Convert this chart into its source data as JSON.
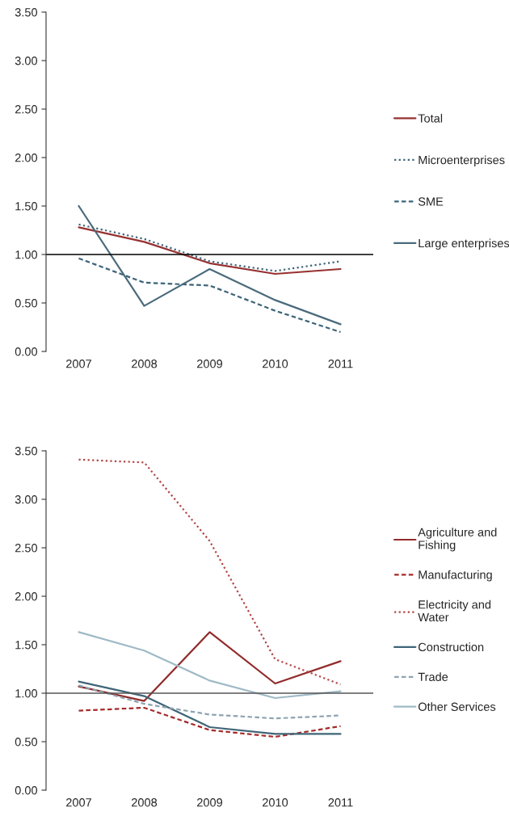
{
  "chart_data": [
    {
      "type": "line",
      "categories": [
        "2007",
        "2008",
        "2009",
        "2010",
        "2011"
      ],
      "ylim": [
        0,
        3.5
      ],
      "yticks": [
        {
          "value": 0,
          "label": "0.00"
        },
        {
          "value": 0.5,
          "label": "0.50"
        },
        {
          "value": 1,
          "label": "1.00"
        },
        {
          "value": 1.5,
          "label": "1.50"
        },
        {
          "value": 2,
          "label": "2.00"
        },
        {
          "value": 2.5,
          "label": "2.50"
        },
        {
          "value": 3,
          "label": "3.00"
        },
        {
          "value": 3.5,
          "label": "3.50"
        }
      ],
      "grid": false,
      "legend": "right",
      "ref_lines": [
        {
          "axis": "y",
          "value": 1,
          "color": "#000000"
        }
      ],
      "series": [
        {
          "name": "Total",
          "color": "#973131",
          "line_style": "solid",
          "values": [
            1.28,
            1.13,
            0.91,
            0.8,
            0.85
          ]
        },
        {
          "name": "Microenterprises",
          "color": "#3d6478",
          "line_style": "dotted",
          "values": [
            1.31,
            1.16,
            0.93,
            0.83,
            0.93
          ]
        },
        {
          "name": "SME",
          "color": "#3d6478",
          "line_style": "dashed",
          "values": [
            0.96,
            0.71,
            0.68,
            0.42,
            0.2
          ]
        },
        {
          "name": "Large enterprises",
          "color": "#4a6b7c",
          "line_style": "solid",
          "values": [
            1.5,
            0.47,
            0.85,
            0.53,
            0.28
          ]
        }
      ]
    },
    {
      "type": "line",
      "categories": [
        "2007",
        "2008",
        "2009",
        "2010",
        "2011"
      ],
      "ylim": [
        0,
        3.5
      ],
      "yticks": [
        {
          "value": 0,
          "label": "0.00"
        },
        {
          "value": 0.5,
          "label": "0.50"
        },
        {
          "value": 1,
          "label": "1.00"
        },
        {
          "value": 1.5,
          "label": "1.50"
        },
        {
          "value": 2,
          "label": "2.00"
        },
        {
          "value": 2.5,
          "label": "2.50"
        },
        {
          "value": 3,
          "label": "3.00"
        },
        {
          "value": 3.5,
          "label": "3.50"
        }
      ],
      "grid": false,
      "legend": "right",
      "ref_lines": [
        {
          "axis": "y",
          "value": 1,
          "color": "#555555"
        }
      ],
      "series": [
        {
          "name": "Agriculture and\nFishing",
          "color": "#922b2b",
          "line_style": "solid",
          "values": [
            1.07,
            0.92,
            1.63,
            1.1,
            1.33
          ]
        },
        {
          "name": "Manufacturing",
          "color": "#a52a2a",
          "line_style": "dashed",
          "values": [
            0.82,
            0.85,
            0.62,
            0.55,
            0.66
          ]
        },
        {
          "name": "Electricity and\nWater",
          "color": "#b04545",
          "line_style": "dotted",
          "values": [
            3.41,
            3.38,
            2.57,
            1.35,
            1.09
          ]
        },
        {
          "name": "Construction",
          "color": "#3f6577",
          "line_style": "solid",
          "values": [
            1.12,
            0.97,
            0.65,
            0.58,
            0.58
          ]
        },
        {
          "name": "Trade",
          "color": "#8fa3b0",
          "line_style": "dashed",
          "values": [
            1.08,
            0.89,
            0.78,
            0.74,
            0.77
          ]
        },
        {
          "name": "Other Services",
          "color": "#9fbac6",
          "line_style": "solid",
          "values": [
            1.63,
            1.44,
            1.13,
            0.95,
            1.02
          ]
        }
      ]
    }
  ]
}
